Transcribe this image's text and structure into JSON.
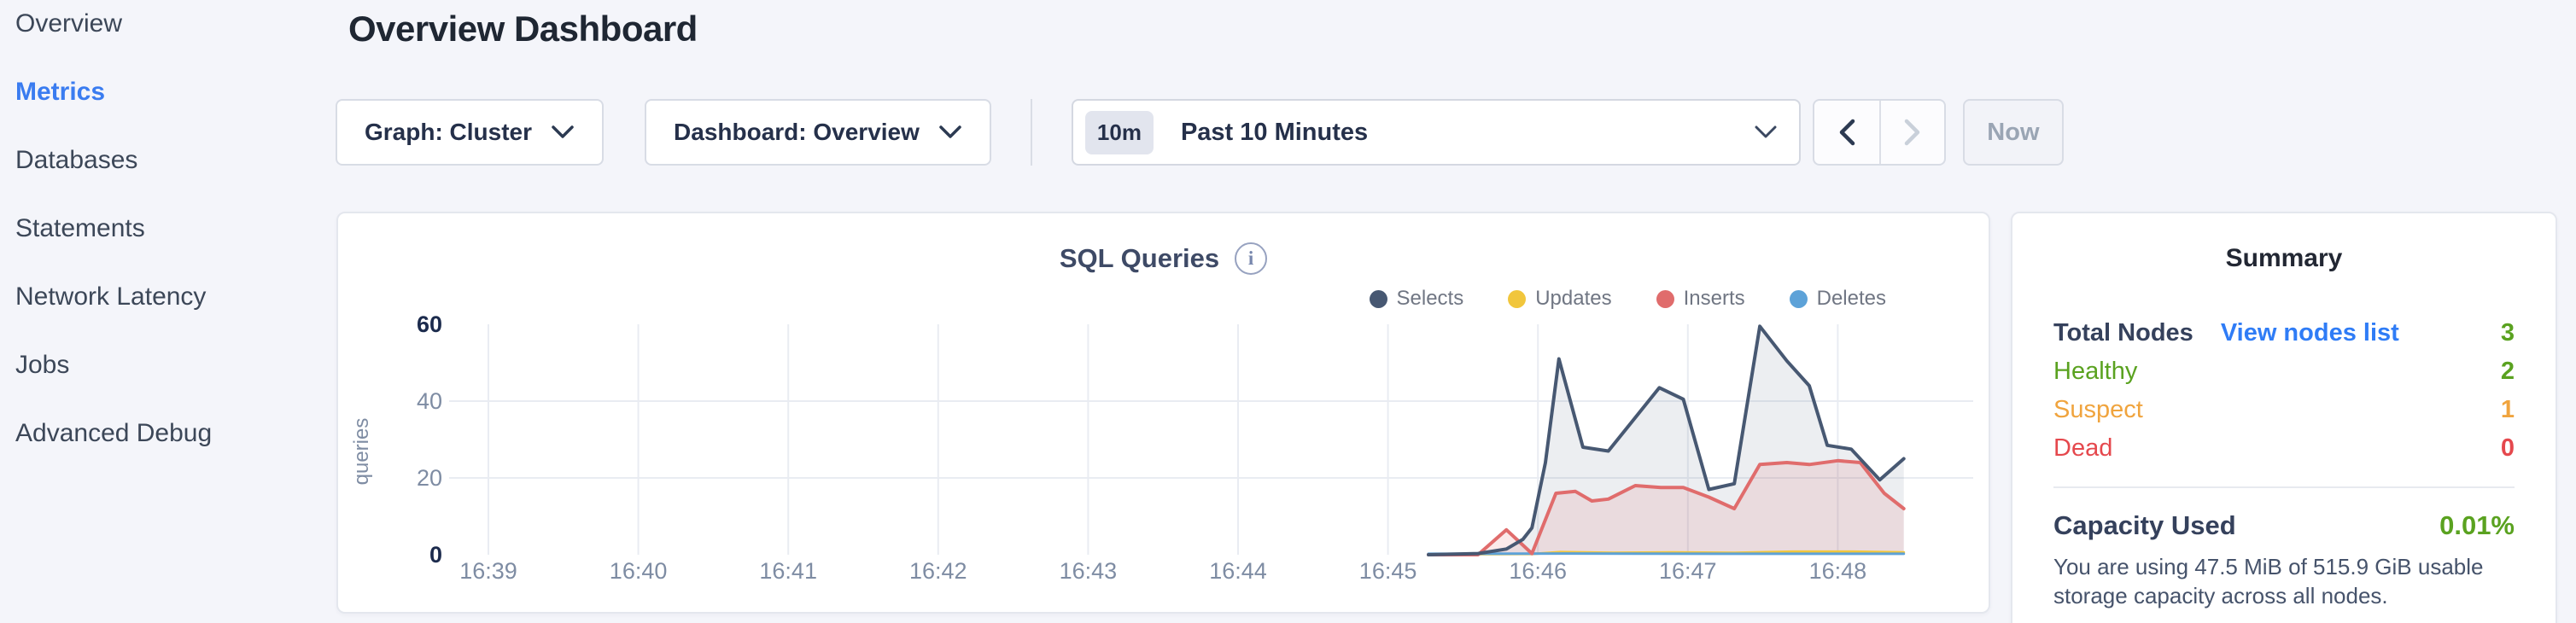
{
  "colors": {
    "accent_blue": "#3a7cf0",
    "link_blue": "#2f7cf6",
    "green": "#5aa220",
    "orange": "#f0a43e",
    "red": "#e5484d",
    "dark": "#35415c"
  },
  "sidebar": {
    "items": [
      {
        "label": "Overview",
        "active": false
      },
      {
        "label": "Metrics",
        "active": true
      },
      {
        "label": "Databases",
        "active": false
      },
      {
        "label": "Statements",
        "active": false
      },
      {
        "label": "Network Latency",
        "active": false
      },
      {
        "label": "Jobs",
        "active": false
      },
      {
        "label": "Advanced Debug",
        "active": false
      }
    ]
  },
  "header": {
    "title": "Overview Dashboard"
  },
  "controls": {
    "graph_dropdown": {
      "label": "Graph: Cluster"
    },
    "dashboard_dropdown": {
      "label": "Dashboard: Overview"
    },
    "time_picker": {
      "badge": "10m",
      "label": "Past 10 Minutes"
    },
    "now_button": "Now"
  },
  "chart": {
    "title": "SQL Queries"
  },
  "chart_data": {
    "type": "area",
    "title": "SQL Queries",
    "ylabel": "queries",
    "ylim": [
      0,
      60
    ],
    "y_ticks": [
      0,
      20,
      40,
      60
    ],
    "x_tick_labels": [
      "16:39",
      "16:40",
      "16:41",
      "16:42",
      "16:43",
      "16:44",
      "16:45",
      "16:46",
      "16:47",
      "16:48"
    ],
    "x_unit": "minutes since 16:39",
    "grid": true,
    "legend_position": "top-right",
    "series": [
      {
        "name": "Selects",
        "color": "#475872",
        "fill": "rgba(71,88,114,0.10)",
        "points": [
          [
            6.27,
            0
          ],
          [
            6.6,
            0.3
          ],
          [
            6.79,
            1.5
          ],
          [
            6.9,
            4
          ],
          [
            6.96,
            7
          ],
          [
            7.05,
            24
          ],
          [
            7.14,
            51
          ],
          [
            7.3,
            28
          ],
          [
            7.47,
            27
          ],
          [
            7.81,
            43.5
          ],
          [
            7.97,
            40.5
          ],
          [
            8.14,
            17
          ],
          [
            8.31,
            18.5
          ],
          [
            8.48,
            59.5
          ],
          [
            8.66,
            50.5
          ],
          [
            8.81,
            44
          ],
          [
            8.93,
            28.5
          ],
          [
            9.09,
            27.5
          ],
          [
            9.28,
            19.5
          ],
          [
            9.44,
            25
          ]
        ]
      },
      {
        "name": "Updates",
        "color": "#f1c63c",
        "fill": null,
        "points": [
          [
            6.27,
            0.1
          ],
          [
            6.96,
            0.2
          ],
          [
            7.15,
            0.7
          ],
          [
            7.5,
            0.5
          ],
          [
            7.9,
            0.6
          ],
          [
            8.3,
            0.5
          ],
          [
            8.7,
            0.8
          ],
          [
            9.1,
            0.8
          ],
          [
            9.44,
            0.6
          ]
        ]
      },
      {
        "name": "Inserts",
        "color": "#e06c6c",
        "fill": "rgba(224,108,108,0.14)",
        "points": [
          [
            6.27,
            0
          ],
          [
            6.6,
            0
          ],
          [
            6.79,
            6.5
          ],
          [
            6.96,
            0.3
          ],
          [
            7.12,
            16
          ],
          [
            7.25,
            16.5
          ],
          [
            7.36,
            14
          ],
          [
            7.47,
            14.5
          ],
          [
            7.65,
            18
          ],
          [
            7.82,
            17.5
          ],
          [
            7.97,
            17.5
          ],
          [
            8.14,
            15
          ],
          [
            8.31,
            12
          ],
          [
            8.48,
            23.5
          ],
          [
            8.66,
            24
          ],
          [
            8.81,
            23.5
          ],
          [
            9,
            24.5
          ],
          [
            9.15,
            24
          ],
          [
            9.31,
            16
          ],
          [
            9.44,
            12
          ]
        ]
      },
      {
        "name": "Deletes",
        "color": "#5da2d8",
        "fill": null,
        "points": [
          [
            6.27,
            0.25
          ],
          [
            7.2,
            0.3
          ],
          [
            8.2,
            0.25
          ],
          [
            9.44,
            0.25
          ]
        ]
      }
    ]
  },
  "summary": {
    "title": "Summary",
    "rows": [
      {
        "label": "Total Nodes",
        "link": "View nodes list",
        "value": "3",
        "label_color": "dark",
        "value_color": "green",
        "bold": true
      },
      {
        "label": "Healthy",
        "value": "2",
        "label_color": "green",
        "value_color": "green",
        "bold": false
      },
      {
        "label": "Suspect",
        "value": "1",
        "label_color": "orange",
        "value_color": "orange",
        "bold": false
      },
      {
        "label": "Dead",
        "value": "0",
        "label_color": "red",
        "value_color": "red",
        "bold": false
      }
    ],
    "capacity": {
      "label": "Capacity Used",
      "value": "0.01%"
    },
    "description": "You are using 47.5 MiB of 515.9 GiB usable storage capacity across all nodes."
  }
}
